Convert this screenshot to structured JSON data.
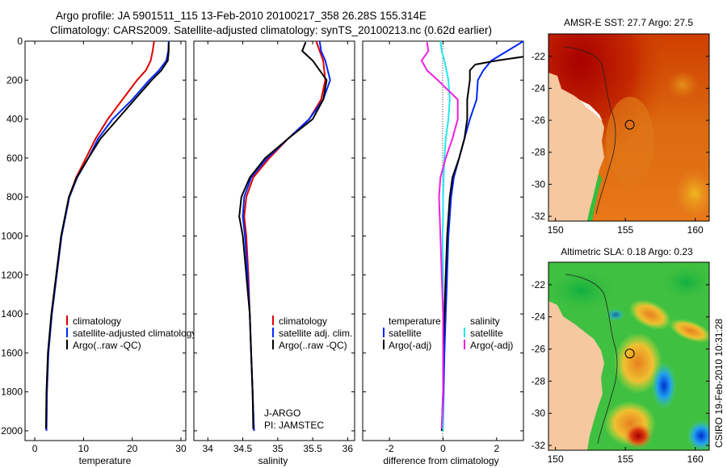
{
  "header": {
    "line1": "Argo profile: JA 5901511_115 13-Feb-2010 20100217_358 26.28S 155.314E",
    "line2": "Climatology: CARS2009. Satellite-adjusted climatology: synTS_20100213.nc (0.62d earlier)"
  },
  "credit": "CSIRO 19-Feb-2010 10:31:28",
  "colors": {
    "climatology": "#e00000",
    "satellite": "#0026ff",
    "argo": "#000000",
    "cyan": "#22e8f0",
    "magenta": "#f020e0"
  },
  "chart_data": [
    {
      "id": "temperature",
      "type": "line",
      "xlabel": "temperature",
      "ylabel": "",
      "xlim": [
        -2,
        31
      ],
      "ylim": [
        0,
        2050
      ],
      "xticks": [
        0,
        10,
        20,
        30
      ],
      "yticks": [
        0,
        200,
        400,
        600,
        800,
        1000,
        1200,
        1400,
        1600,
        1800,
        2000
      ],
      "legend": [
        "climatology",
        "satellite-adjusted climatology",
        "Argo(..raw -QC)"
      ],
      "series": [
        {
          "name": "climatology",
          "color": "#e00000",
          "x": [
            24.5,
            24.2,
            23.8,
            22.8,
            21,
            18,
            15,
            12.5,
            10.5,
            8.5,
            7,
            5.5,
            4.5,
            3.5,
            2.8,
            2.5,
            2.4
          ],
          "y": [
            0,
            50,
            100,
            150,
            200,
            300,
            400,
            500,
            600,
            700,
            800,
            1000,
            1200,
            1400,
            1600,
            1800,
            2000
          ]
        },
        {
          "name": "satellite",
          "color": "#0026ff",
          "x": [
            27.5,
            27.4,
            27,
            25.5,
            23.5,
            20,
            16,
            13,
            11,
            8.7,
            7.1,
            5.5,
            4.5,
            3.5,
            2.8,
            2.5,
            2.4
          ],
          "y": [
            0,
            50,
            100,
            150,
            200,
            300,
            400,
            500,
            600,
            700,
            800,
            1000,
            1200,
            1400,
            1600,
            1800,
            2000
          ]
        },
        {
          "name": "argo",
          "color": "#000000",
          "x": [
            27.5,
            27.5,
            27.3,
            26,
            24,
            20.5,
            17,
            13.5,
            11,
            8.6,
            7,
            5.4,
            4.4,
            3.4,
            2.7,
            2.4,
            2.3
          ],
          "y": [
            5,
            50,
            100,
            150,
            200,
            300,
            400,
            500,
            600,
            700,
            800,
            1000,
            1200,
            1400,
            1600,
            1800,
            1990
          ]
        }
      ]
    },
    {
      "id": "salinity",
      "type": "line",
      "xlabel": "salinity",
      "xlim": [
        33.8,
        36.1
      ],
      "ylim": [
        0,
        2050
      ],
      "xticks": [
        34,
        34.5,
        35,
        35.5,
        36
      ],
      "xticklabels": [
        "34",
        "34.5",
        "35",
        "35.5",
        "36"
      ],
      "legend": [
        "climatology",
        "satellite adj. clim.",
        "Argo(..raw -QC)"
      ],
      "annotation": [
        "J-ARGO",
        "PI: JAMSTEC"
      ],
      "series": [
        {
          "name": "climatology",
          "color": "#e00000",
          "x": [
            35.55,
            35.6,
            35.65,
            35.68,
            35.62,
            35.45,
            35.15,
            34.88,
            34.65,
            34.55,
            34.52,
            34.55,
            34.58,
            34.6,
            34.62,
            34.64,
            34.66
          ],
          "y": [
            0,
            50,
            100,
            200,
            300,
            400,
            500,
            600,
            700,
            800,
            900,
            1000,
            1200,
            1400,
            1600,
            1800,
            2000
          ]
        },
        {
          "name": "satellite",
          "color": "#0026ff",
          "x": [
            35.6,
            35.62,
            35.68,
            35.75,
            35.65,
            35.45,
            35.15,
            34.85,
            34.62,
            34.52,
            34.5,
            34.53,
            34.57,
            34.6,
            34.62,
            34.64,
            34.66
          ],
          "y": [
            0,
            50,
            100,
            200,
            300,
            400,
            500,
            600,
            700,
            800,
            900,
            1000,
            1200,
            1400,
            1600,
            1800,
            2000
          ]
        },
        {
          "name": "argo",
          "color": "#000000",
          "x": [
            35.4,
            35.35,
            35.5,
            35.7,
            35.65,
            35.5,
            35.15,
            34.82,
            34.6,
            34.48,
            34.45,
            34.5,
            34.55,
            34.6,
            34.62,
            34.64,
            34.65
          ],
          "y": [
            5,
            50,
            100,
            200,
            300,
            400,
            500,
            600,
            700,
            800,
            900,
            1000,
            1200,
            1400,
            1600,
            1800,
            1990
          ]
        }
      ]
    },
    {
      "id": "difference",
      "type": "line",
      "xlabel": "difference from climatology",
      "xlim": [
        -3,
        3
      ],
      "ylim": [
        0,
        2050
      ],
      "xticks": [
        -2,
        0,
        2
      ],
      "legend_left": [
        "temperature",
        "satellite",
        "Argo(-adj)"
      ],
      "legend_right": [
        "salinity",
        "satellite",
        "Argo(-adj)"
      ],
      "series": [
        {
          "name": "temperature satellite",
          "color": "#0026ff",
          "x": [
            3.0,
            2.4,
            1.8,
            1.5,
            1.3,
            1.25,
            1.0,
            0.8,
            0.6,
            0.4,
            0.3,
            0.2,
            0.15,
            0.1,
            0.05,
            0.02,
            0.0
          ],
          "y": [
            0,
            50,
            100,
            150,
            200,
            300,
            400,
            500,
            600,
            700,
            800,
            1000,
            1200,
            1400,
            1600,
            1800,
            2000
          ]
        },
        {
          "name": "temperature argo",
          "color": "#000000",
          "x": [
            3.0,
            2.0,
            1.2,
            1.0,
            1.0,
            0.9,
            0.9,
            0.8,
            0.6,
            0.35,
            0.25,
            0.15,
            0.1,
            0.05,
            0.0,
            0.0,
            -0.05
          ],
          "y": [
            80,
            100,
            120,
            150,
            200,
            300,
            400,
            500,
            600,
            700,
            800,
            1000,
            1200,
            1400,
            1600,
            1800,
            2000
          ]
        },
        {
          "name": "salinity satellite",
          "color": "#22e8f0",
          "x": [
            -0.1,
            -0.05,
            0.05,
            0.2,
            0.25,
            0.2,
            0.1,
            0.05,
            0.02,
            0.0,
            0.0,
            -0.02,
            0.0,
            0.0,
            0.0,
            0.0,
            0.0
          ],
          "y": [
            0,
            50,
            100,
            200,
            300,
            400,
            500,
            600,
            700,
            800,
            900,
            1000,
            1200,
            1400,
            1600,
            1800,
            2000
          ]
        },
        {
          "name": "salinity argo",
          "color": "#f020e0",
          "x": [
            -0.6,
            -0.55,
            -0.8,
            -0.6,
            -0.2,
            0.55,
            0.55,
            0.35,
            0.1,
            -0.1,
            -0.15,
            -0.1,
            -0.05,
            0.0,
            0.0,
            0.0,
            -0.05
          ],
          "y": [
            5,
            50,
            100,
            150,
            200,
            300,
            400,
            500,
            600,
            700,
            800,
            1000,
            1200,
            1400,
            1600,
            1800,
            1990
          ]
        }
      ]
    },
    {
      "id": "sst_map",
      "type": "heatmap",
      "title": "AMSR-E SST: 27.7 Argo: 27.5",
      "xlim": [
        149.5,
        161
      ],
      "ylim": [
        -32.3,
        -20.6
      ],
      "xticks": [
        150,
        155,
        160
      ],
      "yticks": [
        -22,
        -24,
        -26,
        -28,
        -30,
        -32
      ],
      "marker": {
        "lon": 155.314,
        "lat": -26.28
      }
    },
    {
      "id": "sla_map",
      "type": "heatmap",
      "title": "Altimetric SLA: 0.18 Argo: 0.23",
      "xlim": [
        149.5,
        161
      ],
      "ylim": [
        -32.3,
        -20.6
      ],
      "xticks": [
        150,
        155,
        160
      ],
      "yticks": [
        -22,
        -24,
        -26,
        -28,
        -30,
        -32
      ],
      "marker": {
        "lon": 155.314,
        "lat": -26.28
      }
    }
  ]
}
